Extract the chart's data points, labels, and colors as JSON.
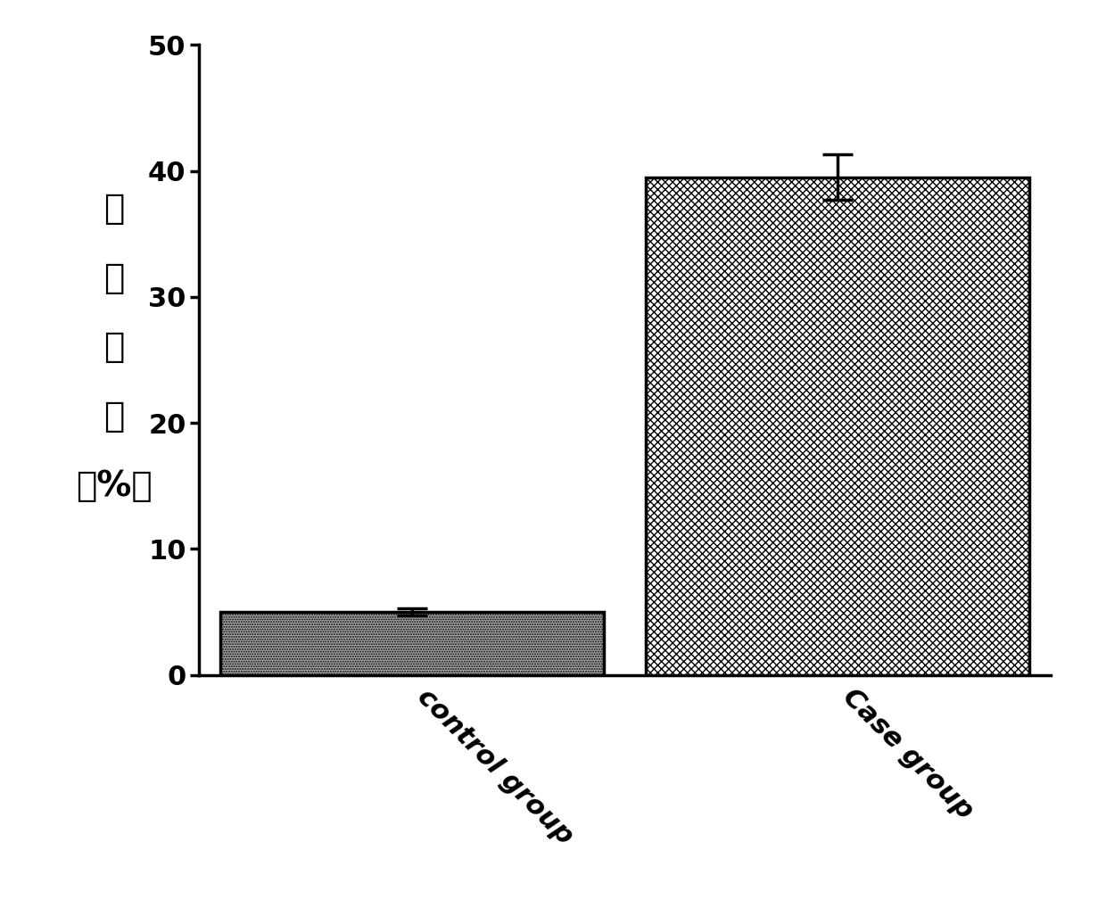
{
  "categories": [
    "control group",
    "Case group"
  ],
  "values": [
    5.0,
    39.5
  ],
  "errors": [
    0.3,
    1.8
  ],
  "ylabel_lines": [
    "纤",
    "毛",
    "细",
    "胞",
    "（%）"
  ],
  "ylim": [
    0,
    50
  ],
  "yticks": [
    0,
    10,
    20,
    30,
    40,
    50
  ],
  "bar_width": 0.45,
  "background_color": "#ffffff",
  "hatch_control": "......",
  "hatch_case": "XXXX",
  "tick_fontsize": 22,
  "xlabel_fontsize": 22,
  "ylabel_fontsize": 28,
  "errorbar_capsize": 12,
  "errorbar_linewidth": 2.5,
  "errorbar_capthick": 2.5,
  "x_positions": [
    0.25,
    0.75
  ],
  "xlim": [
    0.0,
    1.0
  ]
}
